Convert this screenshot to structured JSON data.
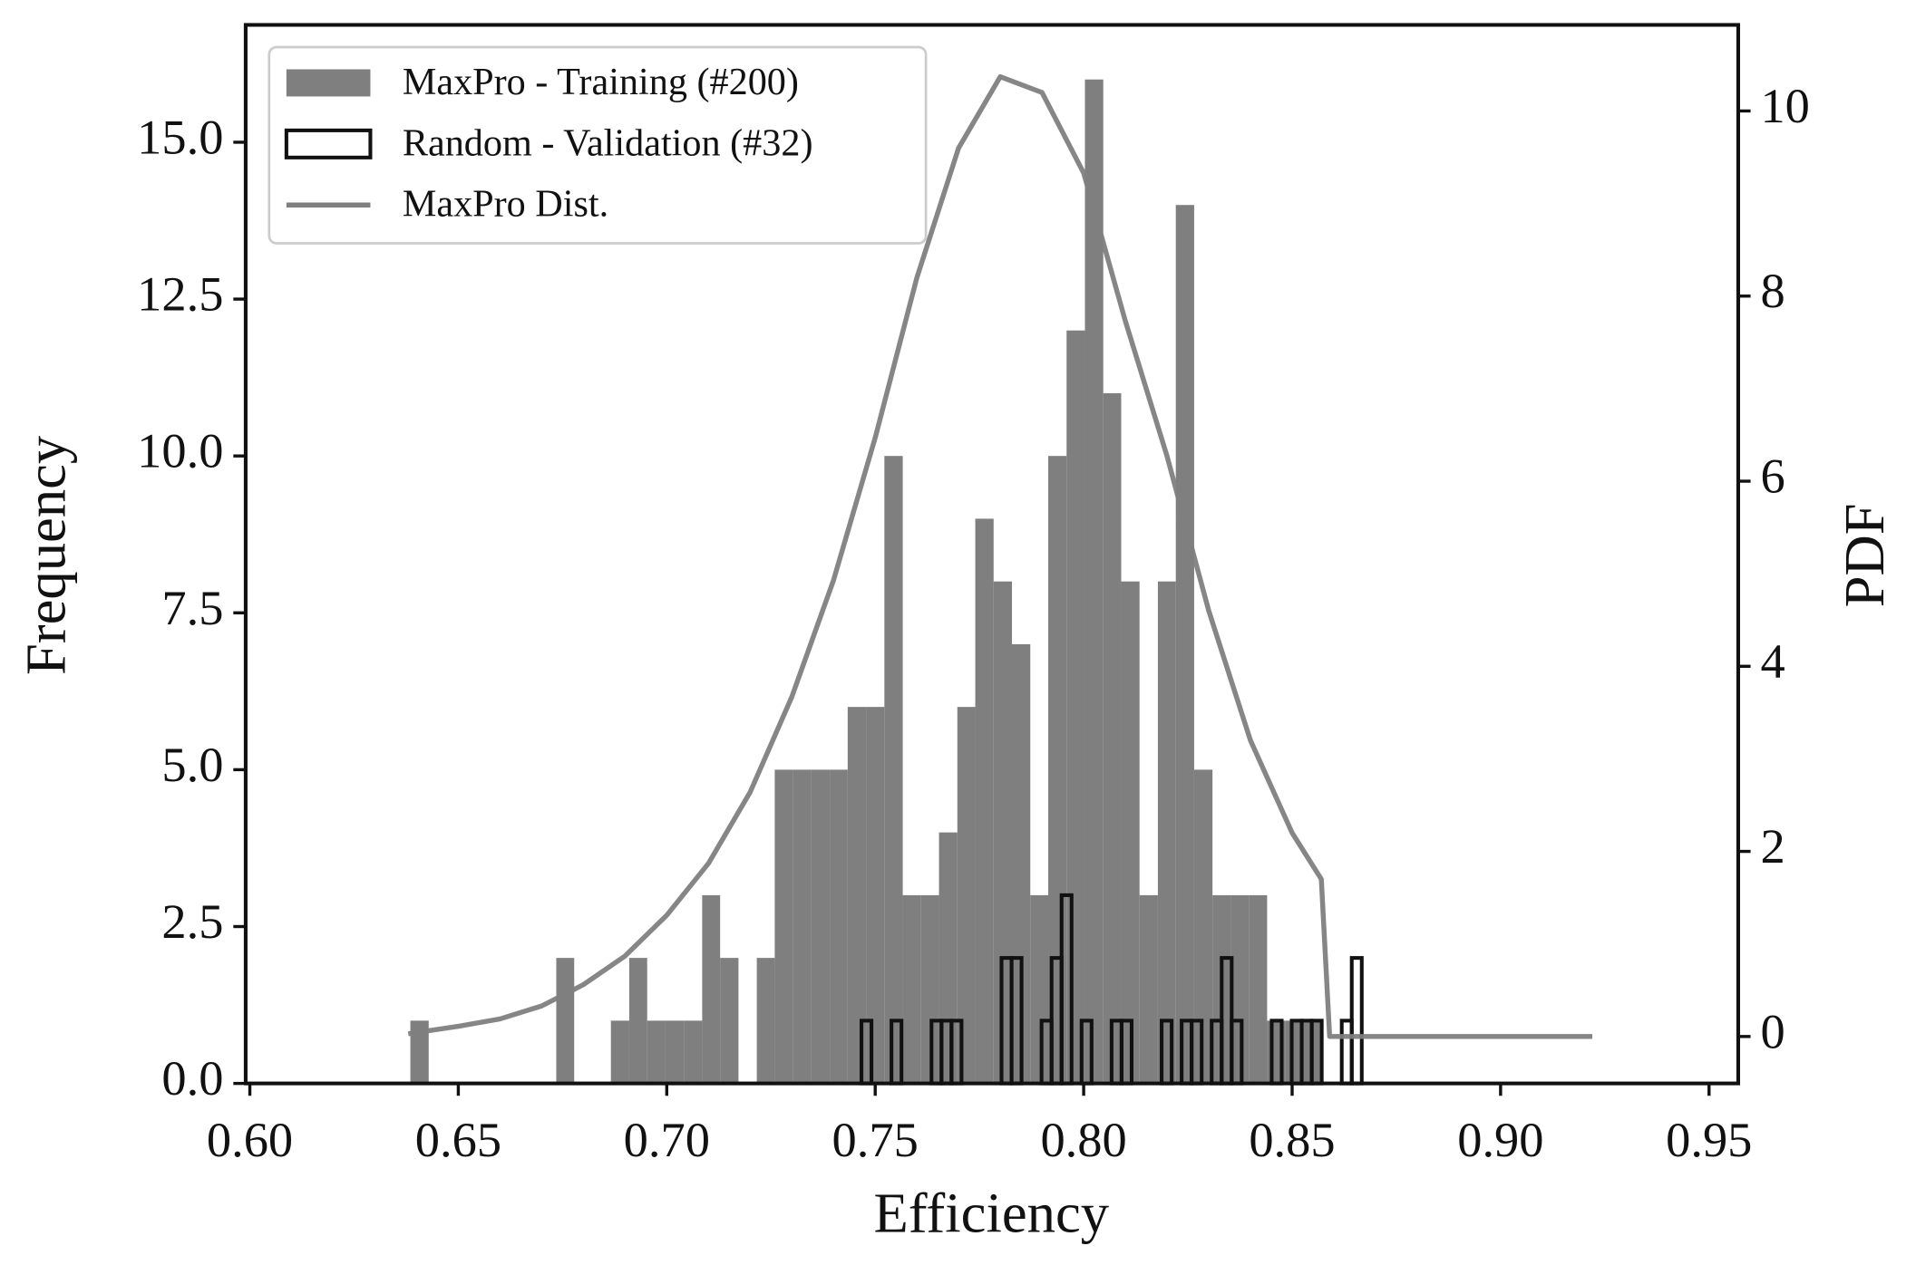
{
  "chart_data": {
    "type": "histogram",
    "xlabel": "Efficiency",
    "ylabel": "Frequency",
    "y2label": "PDF",
    "xlim": [
      0.599,
      0.957
    ],
    "ylim": [
      0,
      16.87
    ],
    "y2lim": [
      -0.507,
      10.93
    ],
    "xticks": [
      {
        "value": 0.6,
        "label": "0.60"
      },
      {
        "value": 0.65,
        "label": "0.65"
      },
      {
        "value": 0.7,
        "label": "0.70"
      },
      {
        "value": 0.75,
        "label": "0.75"
      },
      {
        "value": 0.8,
        "label": "0.80"
      },
      {
        "value": 0.85,
        "label": "0.85"
      },
      {
        "value": 0.9,
        "label": "0.90"
      },
      {
        "value": 0.95,
        "label": "0.95"
      }
    ],
    "yticks": [
      {
        "value": 0,
        "label": "0.0"
      },
      2.5,
      {
        "value": 5,
        "label": "5.0"
      },
      7.5,
      {
        "value": 10,
        "label": "10.0"
      },
      12.5,
      {
        "value": 15,
        "label": "15.0"
      }
    ],
    "y2ticks": [
      0,
      2,
      4,
      6,
      8,
      10
    ],
    "legend": "upper left",
    "series": [
      {
        "name": "MaxPro - Training (#200)",
        "color": "#7f7f7f",
        "fill": true,
        "bins": [
          0.6385,
          0.6429,
          0.6472,
          0.6516,
          0.656,
          0.6604,
          0.6647,
          0.6691,
          0.6735,
          0.6778,
          0.6822,
          0.6866,
          0.691,
          0.6953,
          0.6997,
          0.7041,
          0.7085,
          0.7128,
          0.7172,
          0.7216,
          0.7259,
          0.7303,
          0.7347,
          0.7391,
          0.7434,
          0.7478,
          0.7522,
          0.7566,
          0.7609,
          0.7653,
          0.7697,
          0.774,
          0.7784,
          0.7828,
          0.7872,
          0.7915,
          0.7959,
          0.8003,
          0.8047,
          0.809,
          0.8134,
          0.8178,
          0.8221,
          0.8265,
          0.8309,
          0.8353,
          0.8396,
          0.844,
          0.8484,
          0.8528,
          0.8571
        ],
        "values": [
          1,
          0,
          0,
          0,
          0,
          0,
          0,
          0,
          2,
          0,
          0,
          1,
          2,
          1,
          1,
          1,
          3,
          2,
          0,
          2,
          5,
          5,
          5,
          5,
          6,
          6,
          10,
          3,
          3,
          4,
          6,
          9,
          8,
          7,
          3,
          10,
          12,
          16,
          11,
          8,
          3,
          8,
          14,
          5,
          3,
          3,
          3,
          1,
          1,
          1
        ]
      },
      {
        "name": "Random - Validation (#32)",
        "color": "#111111",
        "fill": false,
        "bins": [
          0.7467,
          0.7491,
          0.7515,
          0.7539,
          0.7563,
          0.7587,
          0.7611,
          0.7635,
          0.7659,
          0.7683,
          0.7707,
          0.7731,
          0.7755,
          0.7779,
          0.7803,
          0.7827,
          0.7851,
          0.7875,
          0.7899,
          0.7923,
          0.7947,
          0.7971,
          0.7995,
          0.8019,
          0.8043,
          0.8067,
          0.8091,
          0.8115,
          0.8139,
          0.8163,
          0.8187,
          0.8211,
          0.8235,
          0.8259,
          0.8283,
          0.8307,
          0.8331,
          0.8355,
          0.8379,
          0.8403,
          0.8427,
          0.8451,
          0.8475,
          0.8499,
          0.8523,
          0.8547,
          0.8571,
          0.8595,
          0.8619,
          0.8643,
          0.8667
        ],
        "values": [
          1,
          0,
          0,
          1,
          0,
          0,
          0,
          1,
          1,
          1,
          0,
          0,
          0,
          0,
          2,
          2,
          0,
          0,
          1,
          2,
          3,
          0,
          1,
          0,
          0,
          1,
          1,
          0,
          0,
          0,
          1,
          0,
          1,
          1,
          0,
          1,
          2,
          1,
          0,
          0,
          0,
          1,
          0,
          1,
          1,
          1,
          0,
          0,
          1,
          2
        ]
      },
      {
        "name": "MaxPro Dist.",
        "type": "line",
        "axis": "y2",
        "color": "#7f7f7f",
        "x": [
          0.638,
          0.65,
          0.66,
          0.67,
          0.68,
          0.69,
          0.7,
          0.71,
          0.72,
          0.73,
          0.74,
          0.75,
          0.76,
          0.77,
          0.78,
          0.79,
          0.8,
          0.81,
          0.82,
          0.83,
          0.84,
          0.85,
          0.857,
          0.859,
          0.922
        ],
        "values": [
          0.03,
          0.11,
          0.19,
          0.33,
          0.56,
          0.87,
          1.31,
          1.87,
          2.64,
          3.67,
          4.93,
          6.47,
          8.2,
          9.6,
          10.37,
          10.2,
          9.33,
          7.73,
          6.27,
          4.6,
          3.2,
          2.2,
          1.7,
          0,
          0
        ]
      }
    ]
  }
}
